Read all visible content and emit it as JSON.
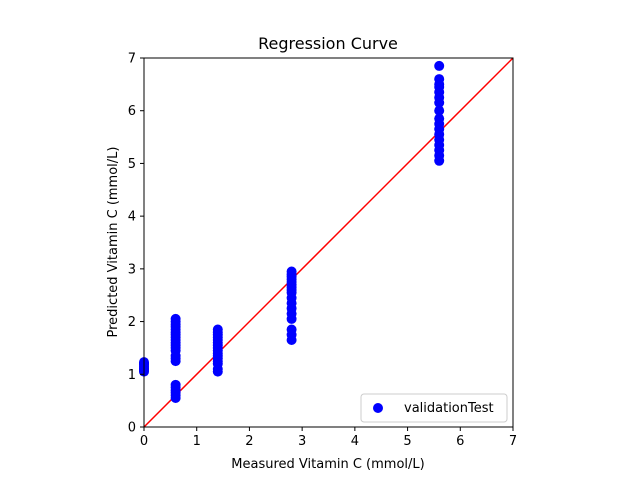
{
  "chart_data": {
    "type": "scatter",
    "title": "Regression Curve",
    "xlabel": "Measured Vitamin C (mmol/L)",
    "ylabel": "Predicted Vitamin C (mmol/L)",
    "xlim": [
      0,
      7
    ],
    "ylim": [
      0,
      7
    ],
    "xticks": [
      "0",
      "1",
      "2",
      "3",
      "4",
      "5",
      "6",
      "7"
    ],
    "yticks": [
      "0",
      "1",
      "2",
      "3",
      "4",
      "5",
      "6",
      "7"
    ],
    "grid": false,
    "legend_position": "lower-right",
    "series": [
      {
        "name": "validationTest",
        "color": "#0000ff",
        "marker": "circle",
        "points": [
          [
            0,
            1.05
          ],
          [
            0,
            1.08
          ],
          [
            0,
            1.1
          ],
          [
            0,
            1.12
          ],
          [
            0,
            1.15
          ],
          [
            0,
            1.18
          ],
          [
            0,
            1.2
          ],
          [
            0,
            1.23
          ],
          [
            0.6,
            0.55
          ],
          [
            0.6,
            0.6
          ],
          [
            0.6,
            0.65
          ],
          [
            0.6,
            0.7
          ],
          [
            0.6,
            0.75
          ],
          [
            0.6,
            0.8
          ],
          [
            0.6,
            1.25
          ],
          [
            0.6,
            1.3
          ],
          [
            0.6,
            1.35
          ],
          [
            0.6,
            1.45
          ],
          [
            0.6,
            1.5
          ],
          [
            0.6,
            1.55
          ],
          [
            0.6,
            1.6
          ],
          [
            0.6,
            1.65
          ],
          [
            0.6,
            1.7
          ],
          [
            0.6,
            1.75
          ],
          [
            0.6,
            1.8
          ],
          [
            0.6,
            1.85
          ],
          [
            0.6,
            1.9
          ],
          [
            0.6,
            1.95
          ],
          [
            0.6,
            2.0
          ],
          [
            0.6,
            2.05
          ],
          [
            1.4,
            1.05
          ],
          [
            1.4,
            1.1
          ],
          [
            1.4,
            1.2
          ],
          [
            1.4,
            1.25
          ],
          [
            1.4,
            1.3
          ],
          [
            1.4,
            1.35
          ],
          [
            1.4,
            1.4
          ],
          [
            1.4,
            1.45
          ],
          [
            1.4,
            1.5
          ],
          [
            1.4,
            1.55
          ],
          [
            1.4,
            1.6
          ],
          [
            1.4,
            1.65
          ],
          [
            1.4,
            1.7
          ],
          [
            1.4,
            1.75
          ],
          [
            1.4,
            1.8
          ],
          [
            1.4,
            1.85
          ],
          [
            2.8,
            1.65
          ],
          [
            2.8,
            1.75
          ],
          [
            2.8,
            1.85
          ],
          [
            2.8,
            2.05
          ],
          [
            2.8,
            2.15
          ],
          [
            2.8,
            2.25
          ],
          [
            2.8,
            2.35
          ],
          [
            2.8,
            2.45
          ],
          [
            2.8,
            2.55
          ],
          [
            2.8,
            2.6
          ],
          [
            2.8,
            2.65
          ],
          [
            2.8,
            2.7
          ],
          [
            2.8,
            2.75
          ],
          [
            2.8,
            2.8
          ],
          [
            2.8,
            2.85
          ],
          [
            2.8,
            2.9
          ],
          [
            2.8,
            2.95
          ],
          [
            5.6,
            5.05
          ],
          [
            5.6,
            5.15
          ],
          [
            5.6,
            5.25
          ],
          [
            5.6,
            5.35
          ],
          [
            5.6,
            5.45
          ],
          [
            5.6,
            5.55
          ],
          [
            5.6,
            5.65
          ],
          [
            5.6,
            5.75
          ],
          [
            5.6,
            5.85
          ],
          [
            5.6,
            6.0
          ],
          [
            5.6,
            6.15
          ],
          [
            5.6,
            6.25
          ],
          [
            5.6,
            6.35
          ],
          [
            5.6,
            6.45
          ],
          [
            5.6,
            6.5
          ],
          [
            5.6,
            6.6
          ],
          [
            5.6,
            6.85
          ]
        ]
      }
    ],
    "reference_line": {
      "color": "#ff0000",
      "points": [
        [
          0,
          0
        ],
        [
          7,
          7
        ]
      ]
    }
  }
}
